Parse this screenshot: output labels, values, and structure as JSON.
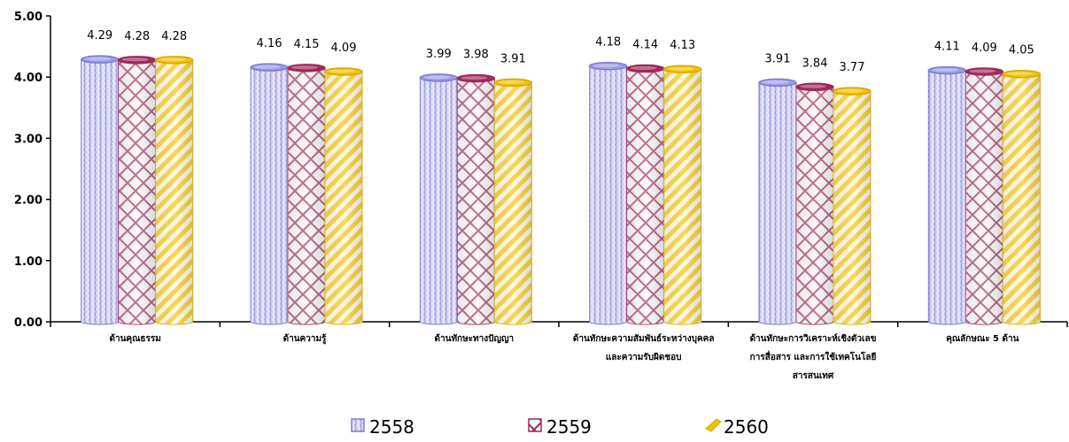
{
  "chart_data": {
    "type": "bar",
    "categories": [
      [
        "ด้านคุณธรรม"
      ],
      [
        "ด้านความรู้"
      ],
      [
        "ด้านทักษะทางปัญญา"
      ],
      [
        "ด้านทักษะความสัมพันธ์ระหว่างบุคคล",
        "และความรับผิดชอบ"
      ],
      [
        "ด้านทักษะการวิเคราะห์เชิงตัวเลข",
        "การสื่อสาร และการใช้เทคโนโลยี",
        "สารสนเทศ"
      ],
      [
        "คุณลักษณะ 5 ด้าน"
      ]
    ],
    "series": [
      {
        "name": "2558",
        "values": [
          4.29,
          4.16,
          3.99,
          4.18,
          3.91,
          4.11
        ],
        "color": "#9b9be6"
      },
      {
        "name": "2559",
        "values": [
          4.28,
          4.15,
          3.98,
          4.14,
          3.84,
          4.09
        ],
        "color": "#a0295a"
      },
      {
        "name": "2560",
        "values": [
          4.28,
          4.09,
          3.91,
          4.13,
          3.77,
          4.05
        ],
        "color": "#f2c200"
      }
    ],
    "data_labels": [
      [
        "4.29",
        "4.16",
        "3.99",
        "4.18",
        "3.91",
        "4.11"
      ],
      [
        "4.28",
        "4.15",
        "3.98",
        "4.14",
        "3.84",
        "4.09"
      ],
      [
        "4.28",
        "4.09",
        "3.91",
        "4.13",
        "3.77",
        "4.05"
      ]
    ],
    "y_ticks": [
      "0.00",
      "1.00",
      "2.00",
      "3.00",
      "4.00",
      "5.00"
    ],
    "ylim": [
      0,
      5
    ],
    "title": "",
    "xlabel": "",
    "ylabel": "",
    "grid": false,
    "legend_position": "bottom"
  }
}
